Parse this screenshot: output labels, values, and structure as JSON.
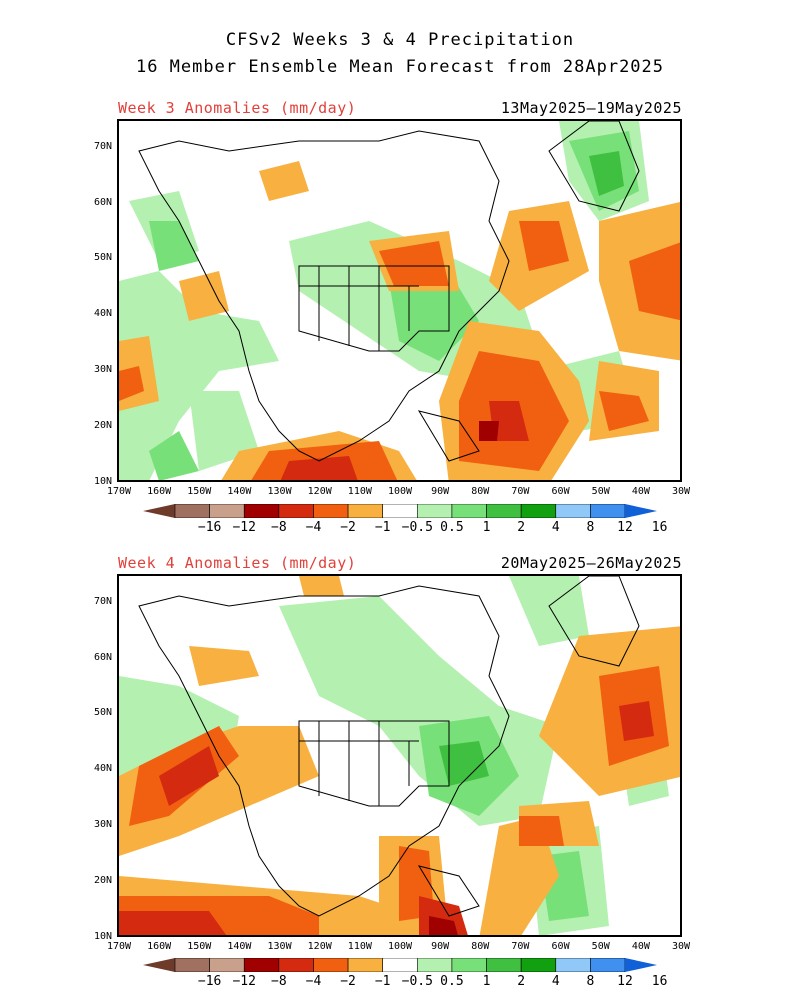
{
  "header": {
    "line1": "CFSv2 Weeks 3 & 4 Precipitation",
    "line2": "16 Member Ensemble Mean Forecast from 28Apr2025"
  },
  "panels": [
    {
      "label": "Week 3 Anomalies (mm/day)",
      "dates": "13May2025–19May2025"
    },
    {
      "label": "Week 4 Anomalies (mm/day)",
      "dates": "20May2025–26May2025"
    }
  ],
  "axes": {
    "lat_labels": [
      "70N",
      "60N",
      "50N",
      "40N",
      "30N",
      "20N",
      "10N"
    ],
    "lon_labels": [
      "170W",
      "160W",
      "150W",
      "140W",
      "130W",
      "120W",
      "110W",
      "100W",
      "90W",
      "80W",
      "70W",
      "60W",
      "50W",
      "40W",
      "30W"
    ]
  },
  "colorbar": {
    "labels": [
      "−16",
      "−12",
      "−8",
      "−4",
      "−2",
      "−1",
      "−0.5",
      "0.5",
      "1",
      "2",
      "4",
      "8",
      "12",
      "16"
    ],
    "colors": [
      "#6e3a2a",
      "#a07060",
      "#c8a08c",
      "#a00000",
      "#d42a10",
      "#f06010",
      "#f8b040",
      "#ffffff",
      "#b4f0b0",
      "#78e078",
      "#40c040",
      "#10a010",
      "#90c8f8",
      "#4090f0",
      "#1060d8"
    ]
  }
}
